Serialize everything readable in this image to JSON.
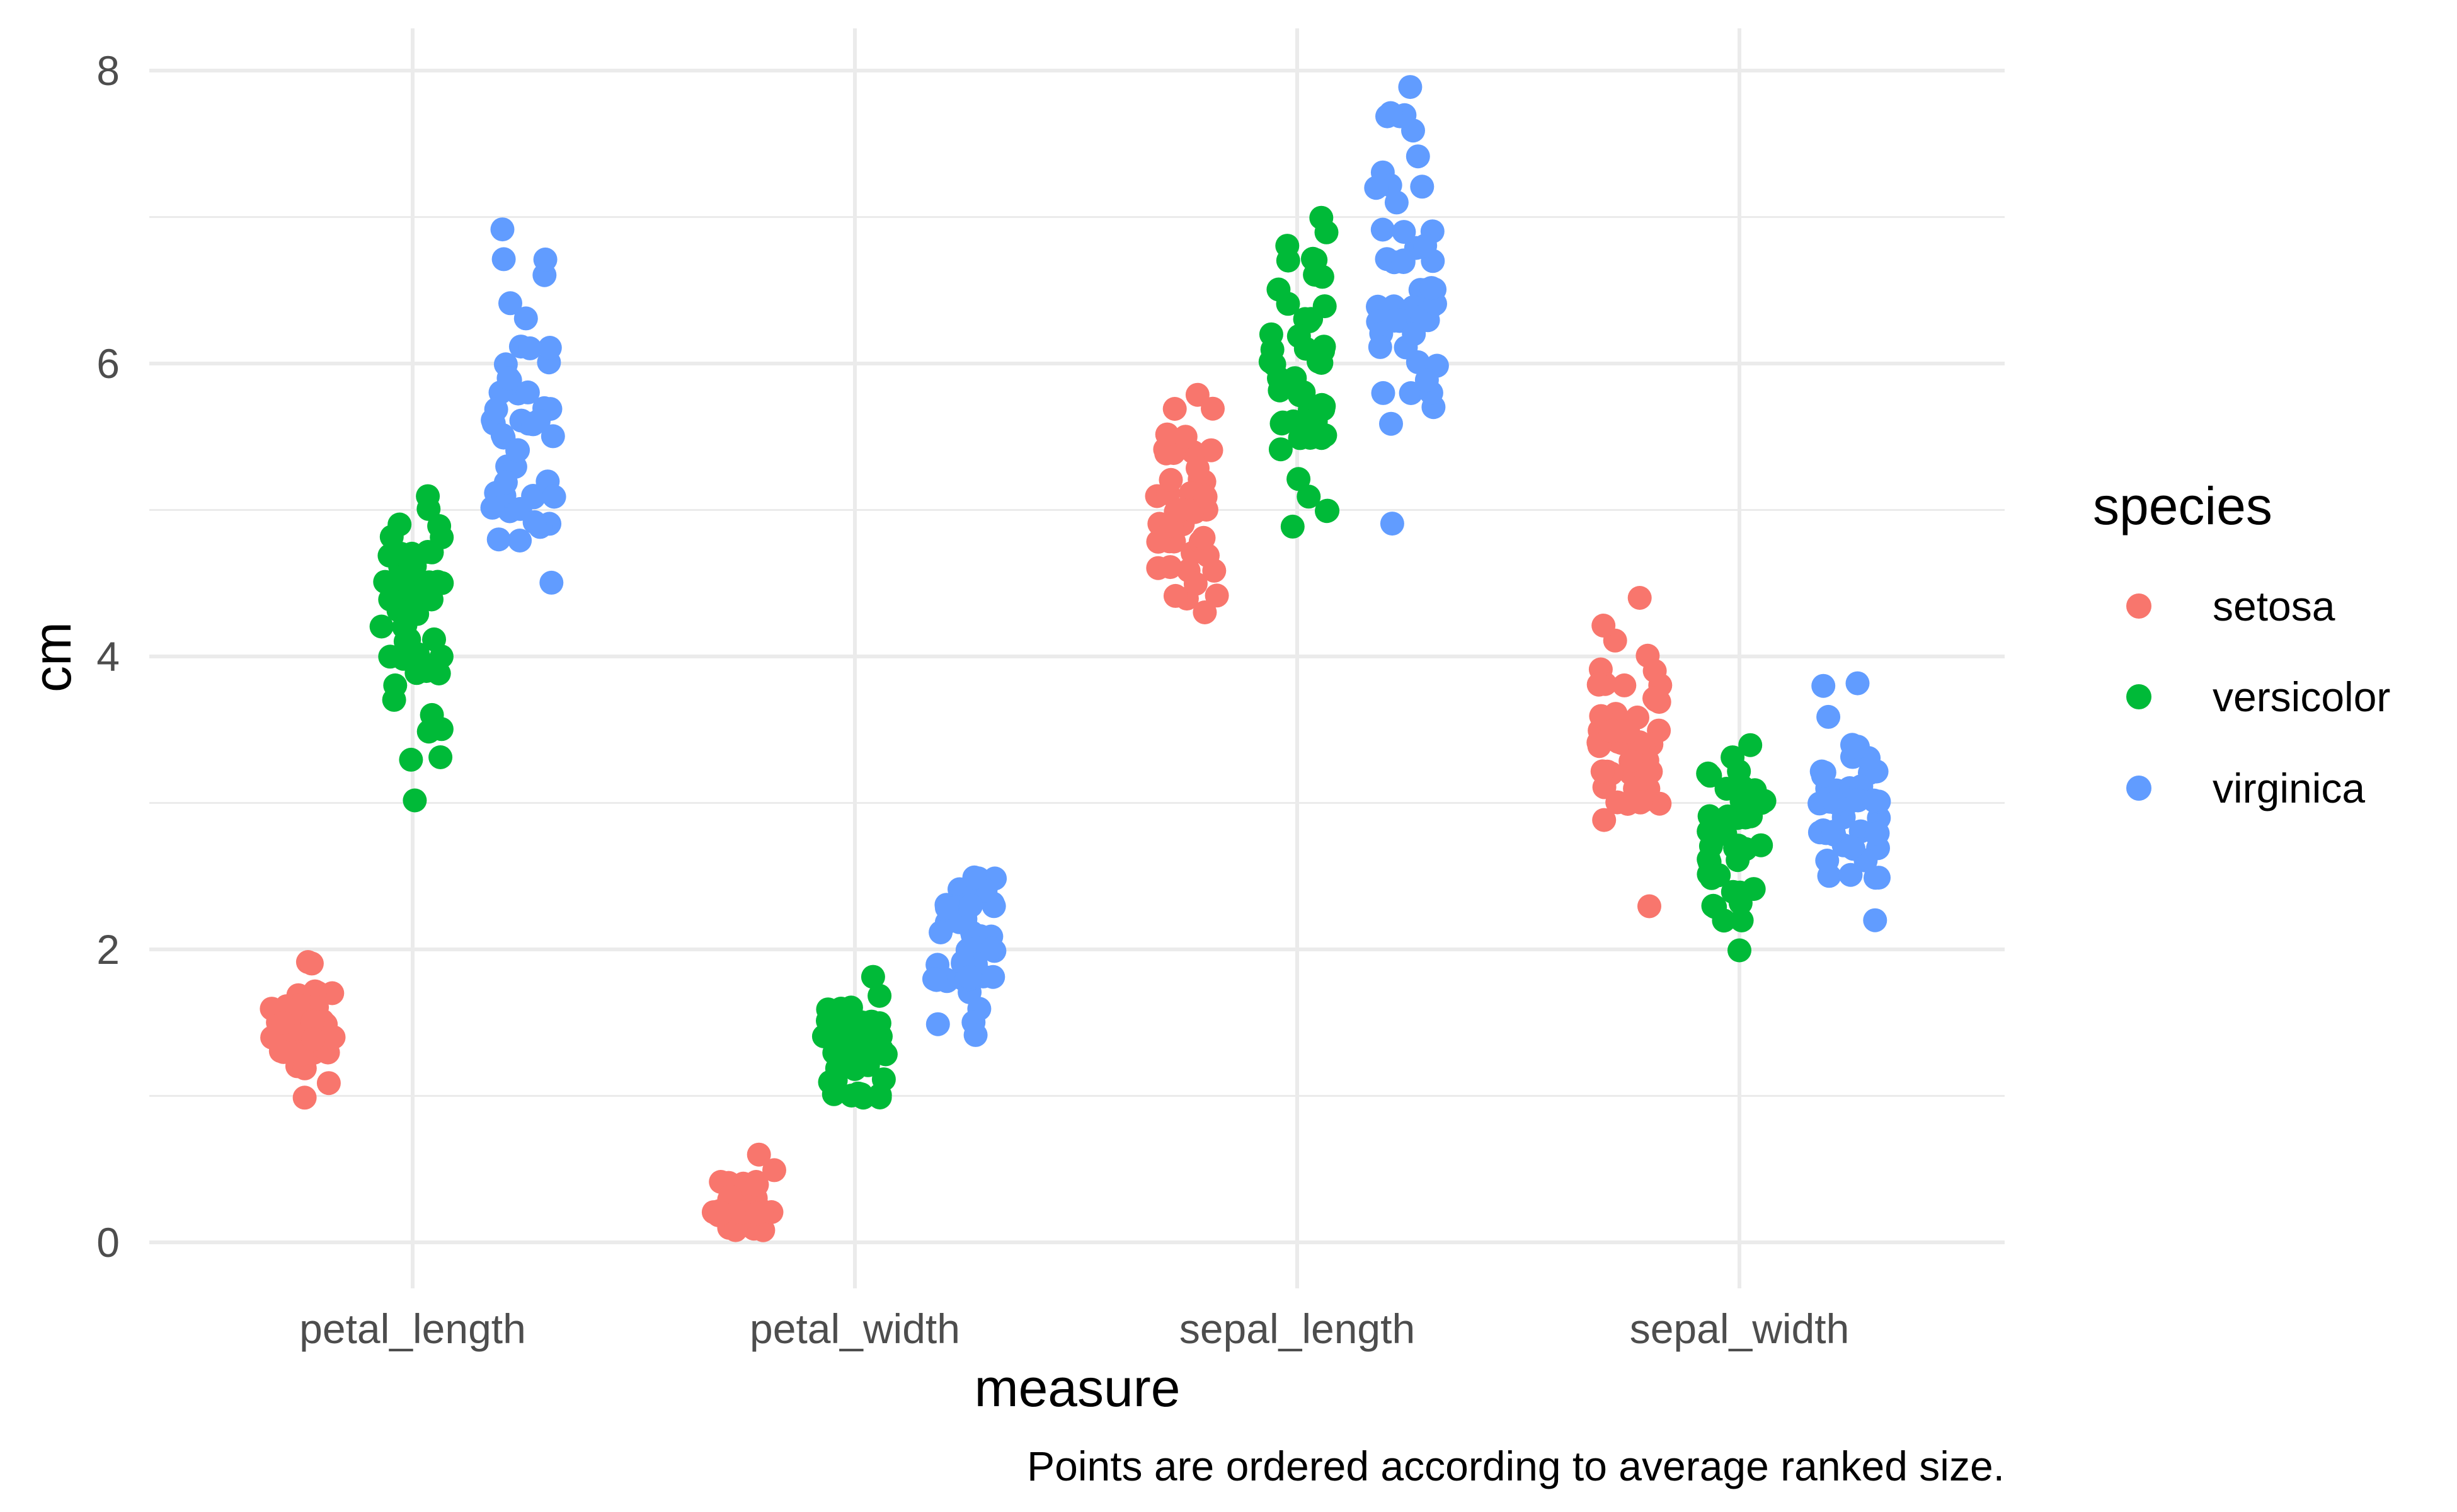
{
  "chart_data": {
    "type": "scatter",
    "xlabel": "measure",
    "ylabel": "cm",
    "caption": "Points are ordered according to average ranked size.",
    "categories": [
      "petal_length",
      "petal_width",
      "sepal_length",
      "sepal_width"
    ],
    "ylim": [
      0,
      8
    ],
    "y_ticks": [
      0,
      2,
      4,
      6,
      8
    ],
    "grid": true,
    "legend": {
      "title": "species",
      "position": "right"
    },
    "series": [
      {
        "name": "setosa",
        "color": "#F8766D",
        "values": {
          "petal_length": [
            1.4,
            1.4,
            1.3,
            1.5,
            1.4,
            1.7,
            1.4,
            1.5,
            1.4,
            1.5,
            1.5,
            1.6,
            1.4,
            1.1,
            1.2,
            1.5,
            1.3,
            1.4,
            1.7,
            1.5,
            1.7,
            1.5,
            1.0,
            1.7,
            1.9,
            1.6,
            1.6,
            1.5,
            1.4,
            1.6,
            1.6,
            1.5,
            1.5,
            1.4,
            1.5,
            1.2,
            1.3,
            1.4,
            1.3,
            1.5,
            1.3,
            1.3,
            1.3,
            1.6,
            1.9,
            1.4,
            1.6,
            1.4,
            1.5,
            1.4
          ],
          "petal_width": [
            0.2,
            0.2,
            0.2,
            0.2,
            0.2,
            0.4,
            0.3,
            0.2,
            0.2,
            0.1,
            0.2,
            0.2,
            0.1,
            0.1,
            0.2,
            0.4,
            0.4,
            0.3,
            0.3,
            0.3,
            0.2,
            0.4,
            0.2,
            0.5,
            0.2,
            0.2,
            0.4,
            0.2,
            0.2,
            0.2,
            0.2,
            0.4,
            0.1,
            0.2,
            0.2,
            0.2,
            0.2,
            0.1,
            0.2,
            0.2,
            0.3,
            0.3,
            0.2,
            0.6,
            0.4,
            0.3,
            0.2,
            0.2,
            0.2,
            0.2
          ],
          "sepal_length": [
            5.1,
            4.9,
            4.7,
            4.6,
            5.0,
            5.4,
            4.6,
            5.0,
            4.4,
            4.9,
            5.4,
            4.8,
            4.8,
            4.3,
            5.8,
            5.7,
            5.4,
            5.1,
            5.7,
            5.1,
            5.4,
            5.1,
            4.6,
            5.1,
            4.8,
            5.0,
            5.0,
            5.2,
            5.2,
            4.7,
            4.8,
            5.4,
            5.2,
            5.5,
            4.9,
            5.0,
            5.5,
            4.9,
            4.4,
            5.1,
            5.0,
            4.5,
            4.4,
            5.0,
            5.1,
            4.8,
            5.1,
            4.6,
            5.3,
            5.0
          ],
          "sepal_width": [
            3.5,
            3.0,
            3.2,
            3.1,
            3.6,
            3.9,
            3.4,
            3.4,
            2.9,
            3.1,
            3.7,
            3.4,
            3.0,
            3.0,
            4.0,
            4.4,
            3.9,
            3.5,
            3.8,
            3.8,
            3.4,
            3.7,
            3.6,
            3.3,
            3.4,
            3.0,
            3.4,
            3.5,
            3.4,
            3.2,
            3.1,
            3.4,
            4.1,
            4.2,
            3.1,
            3.2,
            3.5,
            3.6,
            3.0,
            3.4,
            3.5,
            2.3,
            3.2,
            3.5,
            3.8,
            3.0,
            3.8,
            3.2,
            3.7,
            3.3
          ]
        }
      },
      {
        "name": "versicolor",
        "color": "#00BA38",
        "values": {
          "petal_length": [
            4.7,
            4.5,
            4.9,
            4.0,
            4.6,
            4.5,
            4.7,
            3.3,
            4.6,
            3.9,
            3.5,
            4.2,
            4.0,
            4.7,
            3.6,
            4.4,
            4.5,
            4.1,
            4.5,
            3.9,
            4.8,
            4.0,
            4.9,
            4.7,
            4.3,
            4.4,
            4.8,
            5.0,
            4.5,
            3.5,
            3.8,
            3.7,
            3.9,
            5.1,
            4.5,
            4.5,
            4.7,
            4.4,
            4.1,
            4.0,
            4.4,
            4.6,
            4.0,
            3.3,
            4.2,
            4.2,
            4.2,
            4.3,
            3.0,
            4.1
          ],
          "petal_width": [
            1.4,
            1.5,
            1.5,
            1.3,
            1.5,
            1.3,
            1.6,
            1.0,
            1.3,
            1.4,
            1.0,
            1.5,
            1.0,
            1.4,
            1.3,
            1.4,
            1.5,
            1.0,
            1.5,
            1.1,
            1.8,
            1.3,
            1.5,
            1.2,
            1.3,
            1.4,
            1.4,
            1.7,
            1.5,
            1.0,
            1.1,
            1.0,
            1.2,
            1.6,
            1.5,
            1.6,
            1.5,
            1.3,
            1.3,
            1.3,
            1.2,
            1.4,
            1.2,
            1.0,
            1.3,
            1.2,
            1.3,
            1.3,
            1.1,
            1.3
          ],
          "sepal_length": [
            7.0,
            6.4,
            6.9,
            5.5,
            6.5,
            5.7,
            6.3,
            4.9,
            6.6,
            5.2,
            5.0,
            5.9,
            6.0,
            6.1,
            5.6,
            6.7,
            5.6,
            5.8,
            6.2,
            5.6,
            5.9,
            6.1,
            6.3,
            6.1,
            6.4,
            6.6,
            6.8,
            6.7,
            6.0,
            5.7,
            5.5,
            5.5,
            5.8,
            6.0,
            5.4,
            6.0,
            6.7,
            6.3,
            5.6,
            5.5,
            5.5,
            6.1,
            5.8,
            5.0,
            5.6,
            5.7,
            5.7,
            6.2,
            5.1,
            5.7
          ],
          "sepal_width": [
            3.2,
            3.2,
            3.1,
            2.3,
            2.8,
            2.8,
            3.3,
            2.4,
            2.9,
            2.7,
            2.0,
            3.0,
            2.2,
            2.9,
            2.9,
            3.1,
            3.0,
            2.7,
            2.2,
            2.5,
            3.2,
            2.8,
            2.5,
            2.8,
            2.9,
            3.0,
            2.8,
            3.0,
            2.9,
            2.6,
            2.4,
            2.4,
            2.7,
            2.7,
            3.0,
            3.4,
            3.1,
            2.3,
            3.0,
            2.5,
            2.6,
            3.0,
            2.6,
            2.3,
            2.7,
            3.0,
            2.9,
            2.9,
            2.5,
            2.8
          ]
        }
      },
      {
        "name": "virginica",
        "color": "#619CFF",
        "values": {
          "petal_length": [
            6.0,
            5.1,
            5.9,
            5.6,
            5.8,
            6.6,
            4.5,
            6.3,
            5.8,
            6.1,
            5.1,
            5.3,
            5.5,
            5.0,
            5.1,
            5.3,
            5.5,
            6.7,
            6.9,
            5.0,
            5.7,
            4.9,
            6.7,
            4.9,
            5.7,
            6.0,
            4.8,
            4.9,
            5.6,
            5.8,
            6.1,
            6.4,
            5.6,
            5.1,
            5.6,
            6.1,
            5.6,
            5.5,
            4.8,
            5.4,
            5.6,
            5.1,
            5.1,
            5.9,
            5.7,
            5.2,
            5.0,
            5.2,
            5.4,
            5.1
          ],
          "petal_width": [
            2.5,
            1.9,
            2.1,
            1.8,
            2.2,
            2.1,
            1.7,
            1.8,
            1.8,
            2.5,
            2.0,
            1.9,
            2.1,
            2.0,
            2.4,
            2.3,
            1.8,
            2.2,
            2.3,
            1.5,
            2.3,
            2.0,
            2.0,
            1.8,
            2.1,
            1.8,
            1.8,
            1.8,
            2.1,
            1.6,
            1.9,
            2.0,
            2.2,
            1.5,
            1.4,
            2.3,
            2.4,
            1.8,
            1.8,
            2.1,
            2.4,
            2.3,
            1.9,
            2.3,
            2.5,
            2.3,
            1.9,
            2.0,
            2.3,
            1.8
          ],
          "sepal_length": [
            6.3,
            5.8,
            7.1,
            6.3,
            6.5,
            7.6,
            4.9,
            7.3,
            6.7,
            7.2,
            6.5,
            6.4,
            6.8,
            5.7,
            5.8,
            6.4,
            6.5,
            7.7,
            7.7,
            6.0,
            6.9,
            5.6,
            7.7,
            6.3,
            6.7,
            7.2,
            6.2,
            6.1,
            6.4,
            7.2,
            7.4,
            7.9,
            6.4,
            6.3,
            6.1,
            7.7,
            6.3,
            6.4,
            6.0,
            6.9,
            6.7,
            6.9,
            5.8,
            6.8,
            6.7,
            6.7,
            6.3,
            6.5,
            6.2,
            5.9
          ],
          "sepal_width": [
            3.3,
            2.7,
            3.0,
            2.9,
            3.0,
            3.0,
            2.5,
            2.9,
            2.5,
            3.6,
            3.2,
            2.7,
            3.0,
            2.5,
            2.8,
            3.2,
            3.0,
            3.8,
            2.6,
            2.2,
            3.2,
            2.8,
            2.8,
            2.7,
            3.3,
            3.2,
            2.8,
            3.0,
            2.8,
            3.0,
            2.8,
            3.8,
            2.8,
            2.8,
            2.6,
            3.0,
            3.4,
            3.1,
            3.0,
            3.1,
            3.1,
            3.1,
            2.7,
            3.2,
            3.3,
            3.0,
            2.5,
            3.0,
            3.4,
            3.0
          ]
        }
      }
    ]
  }
}
